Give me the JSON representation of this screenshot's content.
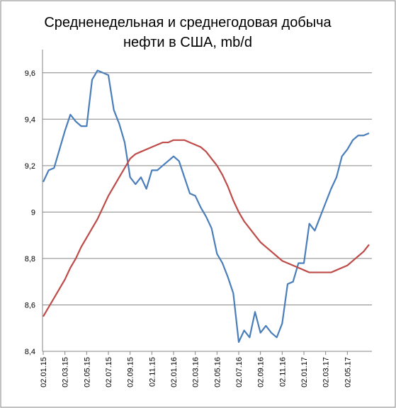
{
  "chart_data": {
    "type": "line",
    "title": [
      "Средненедельная и среднегодовая  добыча",
      "нефти в США, mb/d"
    ],
    "categories": [
      "02.01.15",
      null,
      null,
      null,
      "02.03.15",
      null,
      null,
      null,
      "02.05.15",
      null,
      null,
      null,
      "02.07.15",
      null,
      null,
      null,
      "02.09.15",
      null,
      null,
      null,
      "02.11.15",
      null,
      null,
      null,
      "02.01.16",
      null,
      null,
      null,
      "02.03.16",
      null,
      null,
      null,
      "02.05.16",
      null,
      null,
      null,
      "02.07.16",
      null,
      null,
      null,
      "02.09.16",
      null,
      null,
      null,
      "02.11.16",
      null,
      null,
      null,
      "02.01.17",
      null,
      null,
      null,
      "02.03.17",
      null,
      null,
      null,
      "02.05.17",
      null,
      null,
      null,
      null
    ],
    "series": [
      {
        "color": "#4a7ebb",
        "values": [
          9.13,
          9.18,
          9.19,
          9.27,
          9.35,
          9.42,
          9.39,
          9.37,
          9.37,
          9.57,
          9.61,
          9.6,
          9.59,
          9.44,
          9.38,
          9.3,
          9.15,
          9.12,
          9.15,
          9.1,
          9.18,
          9.18,
          9.2,
          9.22,
          9.24,
          9.22,
          9.15,
          9.08,
          9.07,
          9.02,
          8.98,
          8.93,
          8.82,
          8.78,
          8.72,
          8.65,
          8.44,
          8.49,
          8.46,
          8.57,
          8.48,
          8.51,
          8.48,
          8.46,
          8.52,
          8.69,
          8.7,
          8.78,
          8.78,
          8.95,
          8.92,
          8.98,
          9.04,
          9.1,
          9.15,
          9.24,
          9.27,
          9.31,
          9.33,
          9.33,
          9.34
        ]
      },
      {
        "color": "#be4b48",
        "values": [
          8.55,
          8.59,
          8.63,
          8.67,
          8.71,
          8.76,
          8.8,
          8.85,
          8.89,
          8.93,
          8.97,
          9.02,
          9.07,
          9.11,
          9.15,
          9.19,
          9.23,
          9.25,
          9.26,
          9.27,
          9.28,
          9.29,
          9.3,
          9.3,
          9.31,
          9.31,
          9.31,
          9.3,
          9.29,
          9.28,
          9.26,
          9.23,
          9.2,
          9.16,
          9.11,
          9.05,
          9.0,
          8.96,
          8.93,
          8.9,
          8.87,
          8.85,
          8.83,
          8.81,
          8.79,
          8.78,
          8.77,
          8.76,
          8.75,
          8.74,
          8.74,
          8.74,
          8.74,
          8.74,
          8.75,
          8.76,
          8.77,
          8.79,
          8.81,
          8.83,
          8.86
        ]
      }
    ],
    "ylim": [
      8.4,
      9.7
    ],
    "yticks": [
      {
        "value": 8.4,
        "label": "8,4"
      },
      {
        "value": 8.6,
        "label": "8,6"
      },
      {
        "value": 8.8,
        "label": "8,8"
      },
      9,
      {
        "value": 9.2,
        "label": "9,2"
      },
      {
        "value": 9.4,
        "label": "9,4"
      },
      {
        "value": 9.6,
        "label": "9,6"
      }
    ],
    "grid": true
  }
}
